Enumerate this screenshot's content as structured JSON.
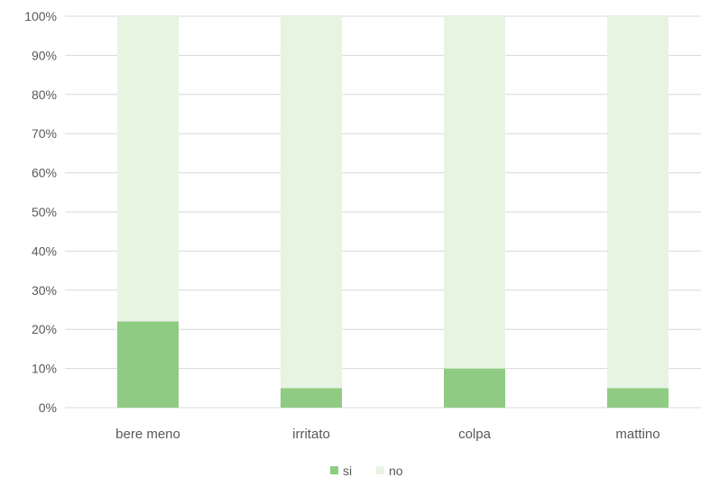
{
  "chart_data": {
    "type": "bar",
    "stacked": true,
    "percent_stacked": true,
    "categories": [
      "bere meno",
      "irritato",
      "colpa",
      "mattino"
    ],
    "series": [
      {
        "name": "si",
        "values": [
          22,
          5,
          10,
          5
        ],
        "color": "#8fcb82"
      },
      {
        "name": "no",
        "values": [
          78,
          95,
          90,
          95
        ],
        "color": "#e7f4e2"
      }
    ],
    "yticks": [
      "0%",
      "10%",
      "20%",
      "30%",
      "40%",
      "50%",
      "60%",
      "70%",
      "80%",
      "90%",
      "100%"
    ],
    "ylim": [
      0,
      100
    ],
    "grid": true,
    "legend_position": "bottom"
  }
}
